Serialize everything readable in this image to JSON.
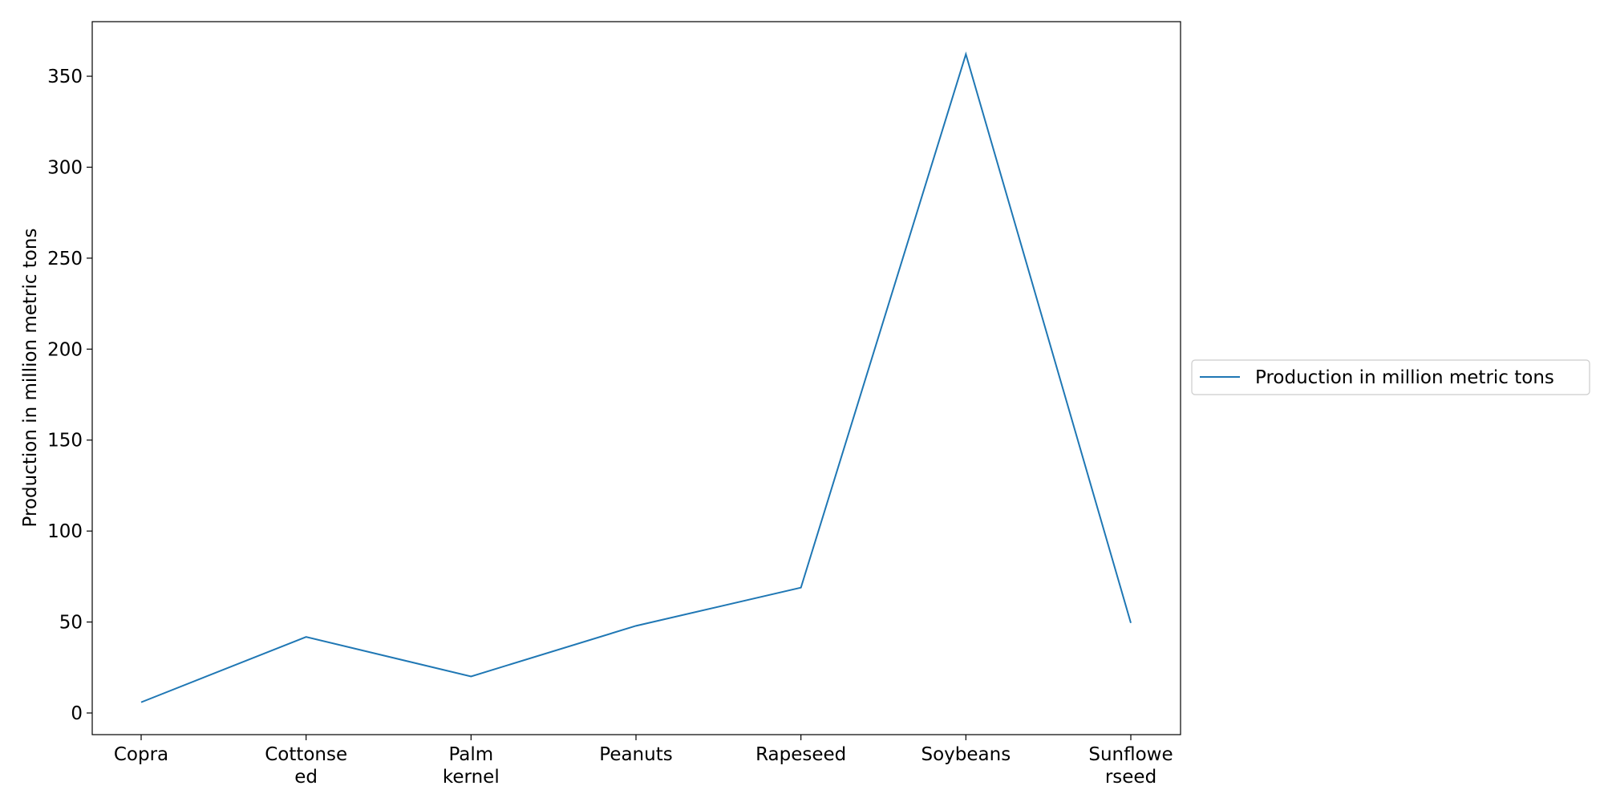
{
  "chart_data": {
    "type": "line",
    "categories": [
      "Copra",
      "Cottonseed",
      "Palm kernel",
      "Peanuts",
      "Rapeseed",
      "Soybeans",
      "Sunflowerseed"
    ],
    "category_tick_lines": [
      [
        "Copra"
      ],
      [
        "Cottonse",
        "ed"
      ],
      [
        "Palm",
        "kernel"
      ],
      [
        "Peanuts"
      ],
      [
        "Rapeseed"
      ],
      [
        "Soybeans"
      ],
      [
        "Sunflowe",
        "rseed"
      ]
    ],
    "series": [
      {
        "name": "Production in million metric tons",
        "values": [
          5.9,
          41.8,
          20.1,
          47.9,
          68.9,
          362.1,
          49.5
        ],
        "color": "#1f77b4"
      }
    ],
    "ylabel": "Production in million metric tons",
    "xlabel": "",
    "ylim": [
      -11.9,
      380.0
    ],
    "yticks": [
      0,
      50,
      100,
      150,
      200,
      250,
      300,
      350
    ],
    "grid": false,
    "legend": {
      "placement": "right",
      "label": "Production in million metric tons"
    }
  }
}
